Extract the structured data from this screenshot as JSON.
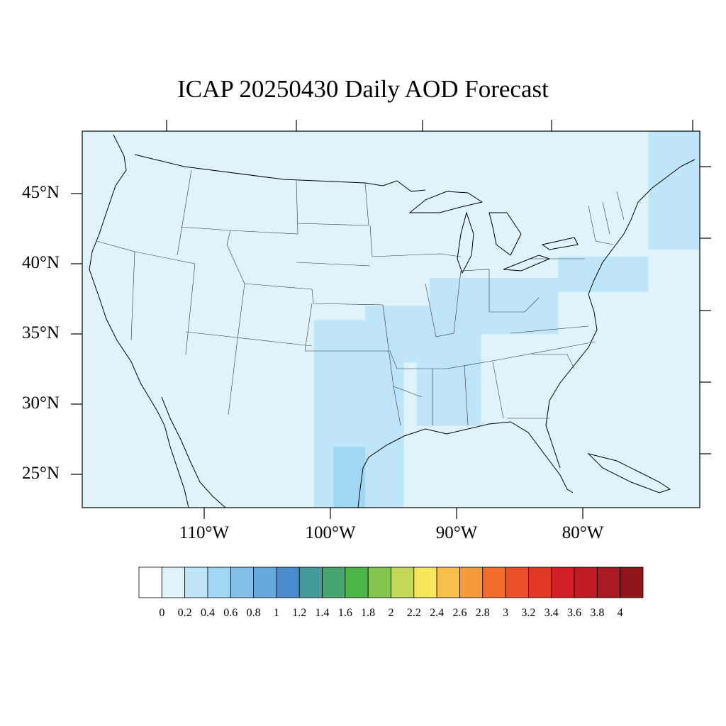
{
  "title": "ICAP 20250430 Daily AOD Forecast",
  "y_axis": {
    "ticks": [
      {
        "label": "45°N",
        "lat": 45
      },
      {
        "label": "40°N",
        "lat": 40
      },
      {
        "label": "35°N",
        "lat": 35
      },
      {
        "label": "30°N",
        "lat": 30
      },
      {
        "label": "25°N",
        "lat": 25
      }
    ]
  },
  "x_axis": {
    "ticks": [
      {
        "label": "110°W",
        "lon": -110
      },
      {
        "label": "100°W",
        "lon": -100
      },
      {
        "label": "90°W",
        "lon": -90
      },
      {
        "label": "80°W",
        "lon": -80
      }
    ]
  },
  "map_extent": {
    "lon_min": -119,
    "lon_max": -71,
    "lat_min": 22.7,
    "lat_max": 49.4
  },
  "colorbar": {
    "colors": [
      "#ffffff",
      "#dff3fb",
      "#bfe6f8",
      "#a0d8f3",
      "#82c0e7",
      "#66a8dc",
      "#4a8ccb",
      "#469b9a",
      "#47a56e",
      "#4bb548",
      "#84c54d",
      "#c3d959",
      "#f8e75b",
      "#f7c04b",
      "#f59a3d",
      "#f26c2b",
      "#ec5028",
      "#e23826",
      "#d51f26",
      "#c11b25",
      "#a91b22",
      "#8f1519"
    ],
    "labels": [
      "0",
      "0.2",
      "0.4",
      "0.6",
      "0.8",
      "1",
      "1.2",
      "1.4",
      "1.6",
      "1.8",
      "2",
      "2.2",
      "2.4",
      "2.6",
      "2.8",
      "3",
      "3.2",
      "3.4",
      "3.6",
      "3.8",
      "4"
    ]
  },
  "aod_field": {
    "background_level": 0.1,
    "regions": [
      {
        "name": "texas-oklahoma-plume",
        "level": 0.3,
        "lon": [
          -101,
          -94
        ],
        "lat": [
          22.7,
          36
        ]
      },
      {
        "name": "south-texas-core",
        "level": 0.5,
        "lon": [
          -99.5,
          -97
        ],
        "lat": [
          22.7,
          27
        ]
      },
      {
        "name": "central-plains-plume",
        "level": 0.3,
        "lon": [
          -97,
          -88
        ],
        "lat": [
          33,
          37
        ]
      },
      {
        "name": "ohio-valley-plume",
        "level": 0.3,
        "lon": [
          -92,
          -82
        ],
        "lat": [
          35,
          39
        ]
      },
      {
        "name": "mid-atlantic-plume",
        "level": 0.3,
        "lon": [
          -82,
          -75
        ],
        "lat": [
          38,
          40.5
        ]
      },
      {
        "name": "lower-mississippi-plume",
        "level": 0.3,
        "lon": [
          -93,
          -88
        ],
        "lat": [
          28.5,
          33
        ]
      },
      {
        "name": "northeast-offshore-plume",
        "level": 0.3,
        "lon": [
          -75,
          -71
        ],
        "lat": [
          41,
          49.4
        ]
      }
    ]
  }
}
